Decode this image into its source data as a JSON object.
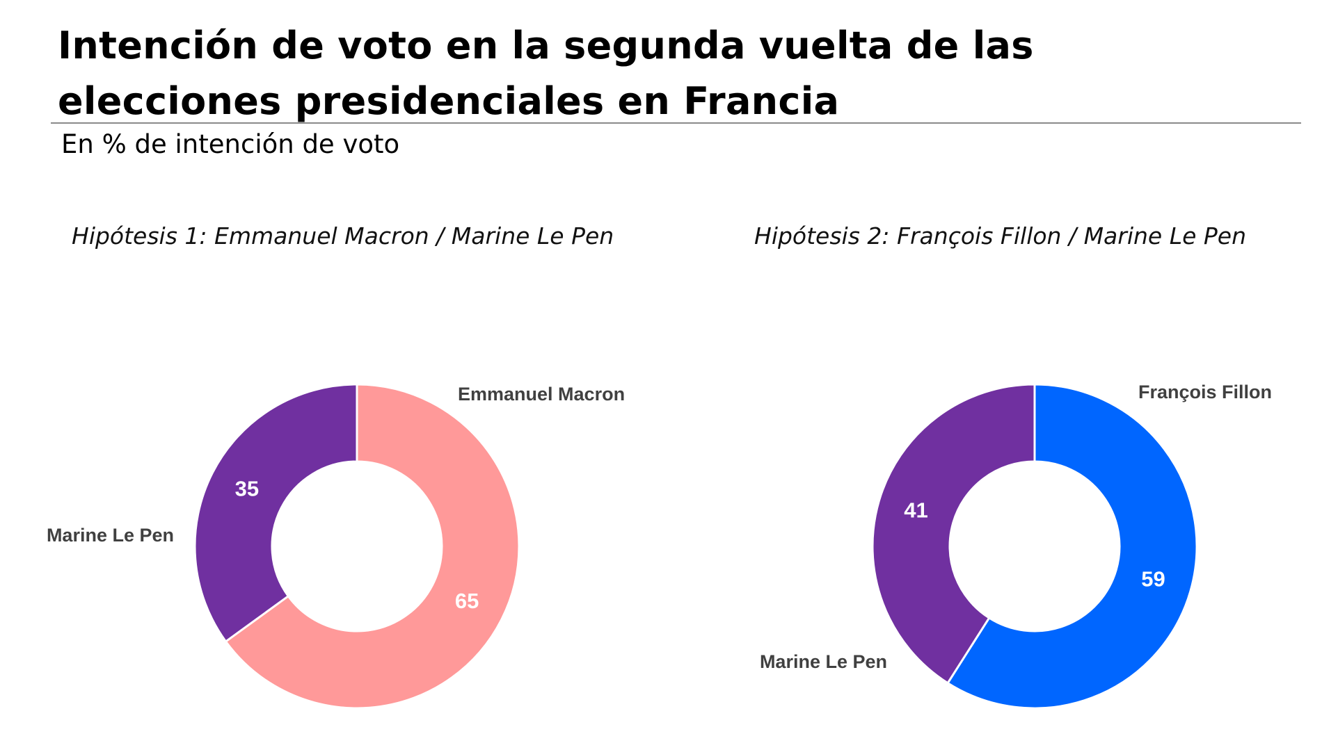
{
  "title": "Intención de voto en la segunda vuelta de las elecciones presidenciales en Francia",
  "title_line1": "Intención de voto en la segunda vuelta de las",
  "title_line2": "elecciones presidenciales en Francia",
  "subtitle": "En % de intención de voto",
  "chart_data": [
    {
      "type": "pie",
      "variant": "donut",
      "title": "Hipótesis 1: Emmanuel Macron / Marine Le Pen",
      "slices": [
        {
          "label": "Emmanuel Macron",
          "value": 65,
          "color": "#FF9999"
        },
        {
          "label": "Marine Le Pen",
          "value": 35,
          "color": "#7030A0"
        }
      ]
    },
    {
      "type": "pie",
      "variant": "donut",
      "title": "Hipótesis 2: François Fillon / Marine Le Pen",
      "slices": [
        {
          "label": "François Fillon",
          "value": 59,
          "color": "#0066FF"
        },
        {
          "label": "Marine Le Pen",
          "value": 41,
          "color": "#7030A0"
        }
      ]
    }
  ]
}
